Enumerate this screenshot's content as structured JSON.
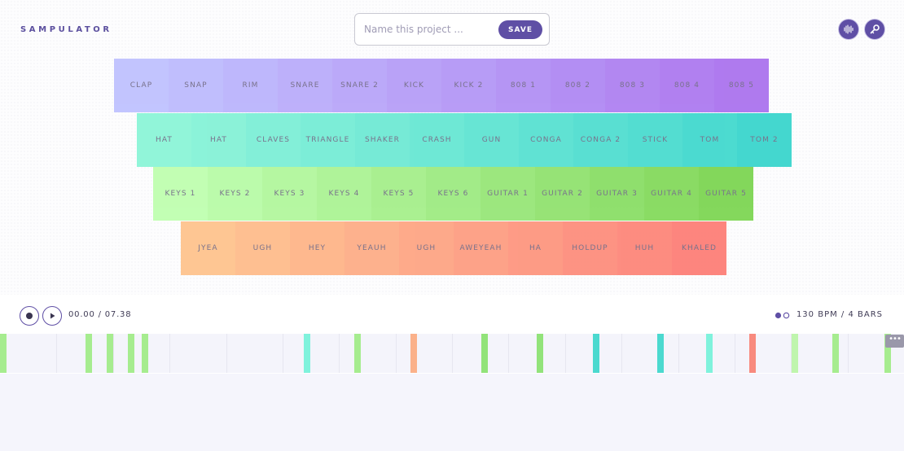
{
  "app": {
    "title": "SAMPULATOR",
    "accent": "#5f4fa5"
  },
  "project": {
    "placeholder": "Name this project ...",
    "save_label": "SAVE"
  },
  "header_icons": [
    "waveform-icon",
    "key-icon"
  ],
  "pads": [
    {
      "row": "drums-1",
      "from": "#bfc2ff",
      "to": "#ab73ee",
      "labels": [
        "CLAP",
        "SNAP",
        "RIM",
        "SNARE",
        "SNARE 2",
        "KICK",
        "KICK 2",
        "808 1",
        "808 2",
        "808 3",
        "808 4",
        "808 5"
      ]
    },
    {
      "row": "drums-2",
      "from": "#8cf5d8",
      "to": "#3bd6cd",
      "labels": [
        "HAT",
        "HAT",
        "CLAVES",
        "TRIANGLE",
        "SHAKER",
        "CRASH",
        "GUN",
        "CONGA",
        "CONGA 2",
        "STICK",
        "TOM",
        "TOM 2"
      ]
    },
    {
      "row": "keys-guitar",
      "from": "#bfffb0",
      "to": "#7dd653",
      "labels": [
        "KEYS 1",
        "KEYS 2",
        "KEYS 3",
        "KEYS 4",
        "KEYS 5",
        "KEYS 6",
        "GUITAR 1",
        "GUITAR 2",
        "GUITAR 3",
        "GUITAR 4",
        "GUITAR 5"
      ]
    },
    {
      "row": "vocals",
      "from": "#ffc48e",
      "to": "#fd7f78",
      "labels": [
        "JYEA",
        "UGH",
        "HEY",
        "YEAUH",
        "UGH",
        "AWEYEAH",
        "HA",
        "HOLDUP",
        "HUH",
        "KHALED"
      ]
    }
  ],
  "transport": {
    "time": "00.00 / 07.38",
    "bpm": "130 BPM / 4 BARS"
  },
  "timeline": {
    "more_label": "•••",
    "hits": [
      {
        "pos": 0.0,
        "color": "#a6ec8f"
      },
      {
        "pos": 0.095,
        "color": "#a6ec8f"
      },
      {
        "pos": 0.118,
        "color": "#a6ec8f"
      },
      {
        "pos": 0.141,
        "color": "#a6ec8f"
      },
      {
        "pos": 0.157,
        "color": "#a6ec8f"
      },
      {
        "pos": 0.336,
        "color": "#7ff2dc"
      },
      {
        "pos": 0.392,
        "color": "#a6ec8f"
      },
      {
        "pos": 0.454,
        "color": "#fbb18a"
      },
      {
        "pos": 0.532,
        "color": "#92e37a"
      },
      {
        "pos": 0.594,
        "color": "#92e37a"
      },
      {
        "pos": 0.656,
        "color": "#4bd9cf"
      },
      {
        "pos": 0.727,
        "color": "#4bd9cf"
      },
      {
        "pos": 0.781,
        "color": "#7ff2dc"
      },
      {
        "pos": 0.829,
        "color": "#f88a7e"
      },
      {
        "pos": 0.876,
        "color": "#bff5ad"
      },
      {
        "pos": 0.921,
        "color": "#a6ec8f"
      },
      {
        "pos": 0.978,
        "color": "#a6ec8f"
      }
    ]
  }
}
